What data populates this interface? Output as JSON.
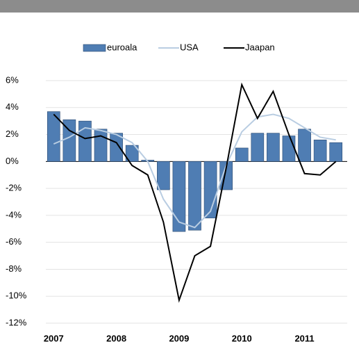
{
  "chart_data": {
    "type": "bar-line",
    "categories": [
      "2007",
      null,
      null,
      null,
      "2008",
      null,
      null,
      null,
      "2009",
      null,
      null,
      null,
      "2010",
      null,
      null,
      null,
      "2011",
      null,
      null
    ],
    "series": [
      {
        "name": "euroala",
        "type": "bar",
        "color": "#4f7db3",
        "values": [
          3.7,
          3.1,
          3.0,
          2.4,
          2.1,
          1.2,
          0.1,
          -2.1,
          -5.2,
          -5.1,
          -4.2,
          -2.1,
          1.0,
          2.1,
          2.1,
          1.9,
          2.4,
          1.6,
          1.4
        ]
      },
      {
        "name": "USA",
        "type": "line",
        "color": "#b9cde2",
        "values": [
          1.3,
          1.8,
          2.5,
          2.3,
          2.0,
          1.4,
          0.0,
          -2.8,
          -4.5,
          -4.9,
          -3.7,
          -0.3,
          2.2,
          3.3,
          3.5,
          3.2,
          2.5,
          1.8,
          1.6
        ]
      },
      {
        "name": "Jaapan",
        "type": "line",
        "color": "#000000",
        "values": [
          3.5,
          2.3,
          1.7,
          1.9,
          1.4,
          -0.3,
          -1.0,
          -4.5,
          -10.3,
          -7.0,
          -6.3,
          -0.5,
          5.7,
          3.2,
          5.2,
          2.0,
          -0.9,
          -1.0,
          0.0
        ]
      }
    ],
    "ylim": [
      -12,
      6
    ],
    "yticks": [
      {
        "value": -12,
        "label": "-12%"
      },
      {
        "value": -10,
        "label": "-10%"
      },
      {
        "value": -8,
        "label": "-8%"
      },
      {
        "value": -6,
        "label": "-6%"
      },
      {
        "value": -4,
        "label": "-4%"
      },
      {
        "value": -2,
        "label": "-2%"
      },
      {
        "value": 0,
        "label": "0%"
      },
      {
        "value": 2,
        "label": "2%"
      },
      {
        "value": 4,
        "label": "4%"
      },
      {
        "value": 6,
        "label": "6%"
      }
    ],
    "grid": true
  }
}
